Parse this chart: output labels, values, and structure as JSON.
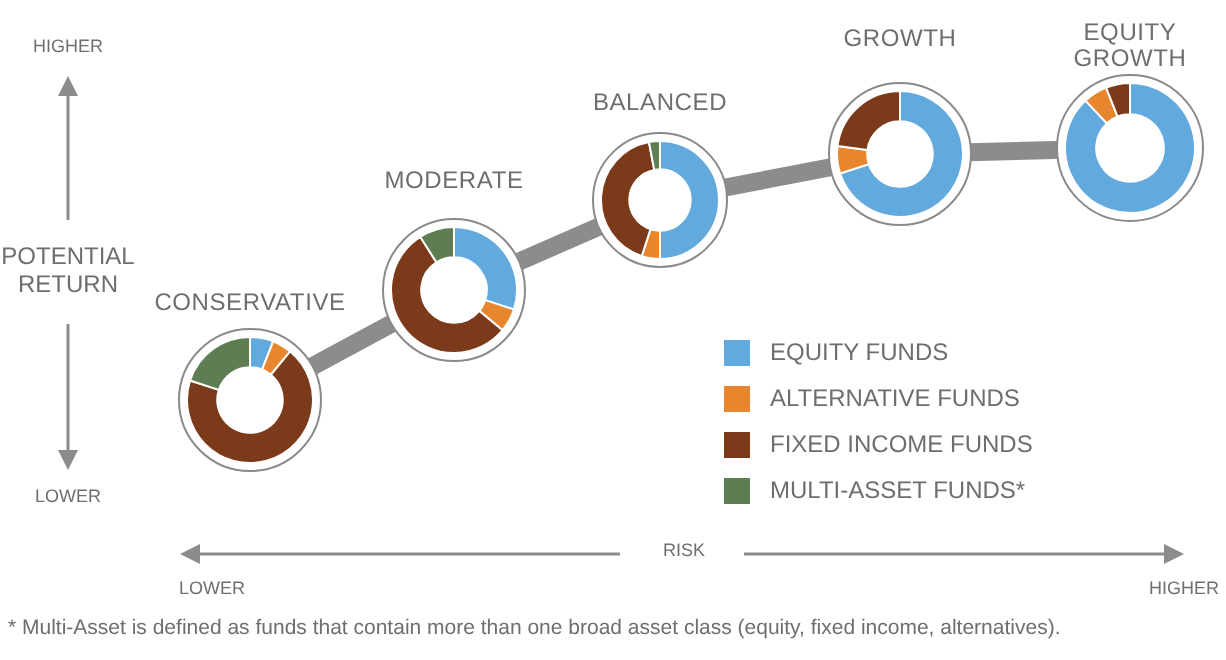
{
  "chart_data": [
    {
      "type": "donut",
      "title": "CONSERVATIVE",
      "categories": [
        "EQUITY FUNDS",
        "ALTERNATIVE FUNDS",
        "FIXED INCOME FUNDS",
        "MULTI-ASSET FUNDS*"
      ],
      "values": [
        6,
        5,
        69,
        20
      ],
      "colors": [
        "#62a9de",
        "#e8862e",
        "#7b3a19",
        "#5e7d52"
      ],
      "legend": "bottom right",
      "annotations": [
        "HIGHER",
        "POTENTIAL RETURN",
        "LOWER",
        "RISK",
        "LOWER",
        "HIGHER",
        "* Multi-Asset is defined as funds that contain more than one broad asset class (equity, fixed income, alternatives)."
      ]
    },
    {
      "type": "donut",
      "title": "MODERATE",
      "categories": [
        null,
        null,
        null,
        null
      ],
      "values": [
        30,
        6,
        55,
        9
      ],
      "colors": [
        "#62a9de",
        "#e8862e",
        "#7b3a19",
        "#5e7d52"
      ]
    },
    {
      "type": "donut",
      "title": "BALANCED",
      "categories": [
        null,
        null,
        null,
        null
      ],
      "values": [
        50,
        5,
        42,
        3
      ],
      "colors": [
        "#62a9de",
        "#e8862e",
        "#7b3a19",
        "#5e7d52"
      ]
    },
    {
      "type": "donut",
      "title": "GROWTH",
      "categories": [
        null,
        null,
        null,
        null
      ],
      "values": [
        70,
        7,
        23,
        0
      ],
      "colors": [
        "#62a9de",
        "#e8862e",
        "#7b3a19",
        "#5e7d52"
      ]
    },
    {
      "type": "donut",
      "title": "EQUITY GROWTH",
      "categories": [
        null,
        null,
        null,
        null
      ],
      "values": [
        88,
        6,
        6,
        0
      ],
      "colors": [
        "#62a9de",
        "#e8862e",
        "#7b3a19",
        "#5e7d52"
      ]
    }
  ]
}
